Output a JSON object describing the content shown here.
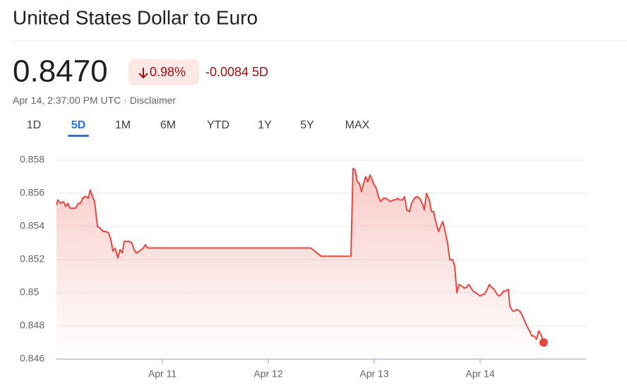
{
  "header": {
    "title": "United States Dollar to Euro",
    "price": "0.8470",
    "change_percent": "0.98%",
    "change": "-0.0084 5D",
    "timestamp": "Apr 14, 2:37:00 PM UTC",
    "separator": "·",
    "disclaimer": "Disclaimer"
  },
  "tabs": {
    "items": [
      "1D",
      "5D",
      "1M",
      "6M",
      "YTD",
      "1Y",
      "5Y",
      "MAX"
    ],
    "selected": 1
  },
  "chart_data": {
    "type": "line",
    "x": [
      10.0,
      10.013,
      10.04,
      10.067,
      10.087,
      10.107,
      10.127,
      10.153,
      10.18,
      10.207,
      10.227,
      10.247,
      10.267,
      10.28,
      10.3,
      10.32,
      10.34,
      10.36,
      10.387,
      10.413,
      10.44,
      10.467,
      10.493,
      10.513,
      10.533,
      10.553,
      10.58,
      10.6,
      10.62,
      10.64,
      10.667,
      10.687,
      10.713,
      10.733,
      10.753,
      10.78,
      10.8,
      10.82,
      10.84,
      10.86,
      10.867,
      12.4,
      12.5,
      12.78,
      12.8,
      12.82,
      12.84,
      12.86,
      12.88,
      12.9,
      12.92,
      12.94,
      12.96,
      12.98,
      13.0,
      13.02,
      13.04,
      13.06,
      13.087,
      13.107,
      13.133,
      13.153,
      13.18,
      13.2,
      13.22,
      13.24,
      13.267,
      13.287,
      13.307,
      13.333,
      13.353,
      13.38,
      13.4,
      13.427,
      13.453,
      13.473,
      13.493,
      13.52,
      13.54,
      13.56,
      13.58,
      13.607,
      13.627,
      13.647,
      13.673,
      13.693,
      13.713,
      13.74,
      13.76,
      13.78,
      13.8,
      13.827,
      13.847,
      13.867,
      13.893,
      13.913,
      13.933,
      13.96,
      13.98,
      14.0,
      14.02,
      14.04,
      14.067,
      14.087,
      14.113,
      14.133,
      14.16,
      14.18,
      14.2,
      14.22,
      14.24,
      14.267,
      14.28,
      14.307,
      14.327,
      14.347,
      14.373,
      14.393,
      14.413,
      14.44,
      14.467,
      14.487,
      14.507,
      14.533,
      14.553,
      14.573,
      14.6
    ],
    "series": [
      {
        "color": "#e8453c",
        "values": [
          0.8553,
          0.8556,
          0.8554,
          0.8555,
          0.8552,
          0.8554,
          0.8551,
          0.8551,
          0.8551,
          0.8554,
          0.8554,
          0.8557,
          0.8558,
          0.8558,
          0.8557,
          0.8562,
          0.8558,
          0.8555,
          0.854,
          0.8539,
          0.8537,
          0.8537,
          0.8536,
          0.8532,
          0.8525,
          0.8527,
          0.8521,
          0.8526,
          0.8524,
          0.8531,
          0.8531,
          0.8531,
          0.853,
          0.8526,
          0.8524,
          0.8525,
          0.8526,
          0.8527,
          0.8529,
          0.8527,
          0.8527,
          0.8527,
          0.8522,
          0.8522,
          0.8575,
          0.8574,
          0.8567,
          0.8566,
          0.8561,
          0.8566,
          0.857,
          0.8567,
          0.8571,
          0.8568,
          0.8565,
          0.8563,
          0.8558,
          0.8555,
          0.8557,
          0.8557,
          0.8556,
          0.8555,
          0.8556,
          0.8556,
          0.8557,
          0.8556,
          0.8556,
          0.8558,
          0.855,
          0.8549,
          0.8554,
          0.8557,
          0.8558,
          0.8557,
          0.8554,
          0.855,
          0.856,
          0.8556,
          0.8549,
          0.8549,
          0.8543,
          0.8537,
          0.854,
          0.8543,
          0.8536,
          0.853,
          0.852,
          0.852,
          0.8516,
          0.85,
          0.8505,
          0.8504,
          0.8503,
          0.8503,
          0.8505,
          0.8503,
          0.8501,
          0.85,
          0.8499,
          0.8498,
          0.8499,
          0.8499,
          0.8502,
          0.8505,
          0.8503,
          0.8502,
          0.8499,
          0.8498,
          0.8499,
          0.8501,
          0.8501,
          0.8502,
          0.8492,
          0.8489,
          0.8489,
          0.849,
          0.8489,
          0.8487,
          0.8484,
          0.848,
          0.8477,
          0.8474,
          0.8474,
          0.8472,
          0.8477,
          0.8475,
          0.847
        ]
      }
    ],
    "xlim": [
      10,
      15
    ],
    "xticks": [
      {
        "value": 11,
        "label": "Apr 11"
      },
      {
        "value": 12,
        "label": "Apr 12"
      },
      {
        "value": 13,
        "label": "Apr 13"
      },
      {
        "value": 14,
        "label": "Apr 14"
      }
    ],
    "ylim": [
      0.846,
      0.858
    ],
    "yticks": [
      0.846,
      0.848,
      0.85,
      0.852,
      0.854,
      0.856,
      0.858
    ],
    "grid": true
  }
}
